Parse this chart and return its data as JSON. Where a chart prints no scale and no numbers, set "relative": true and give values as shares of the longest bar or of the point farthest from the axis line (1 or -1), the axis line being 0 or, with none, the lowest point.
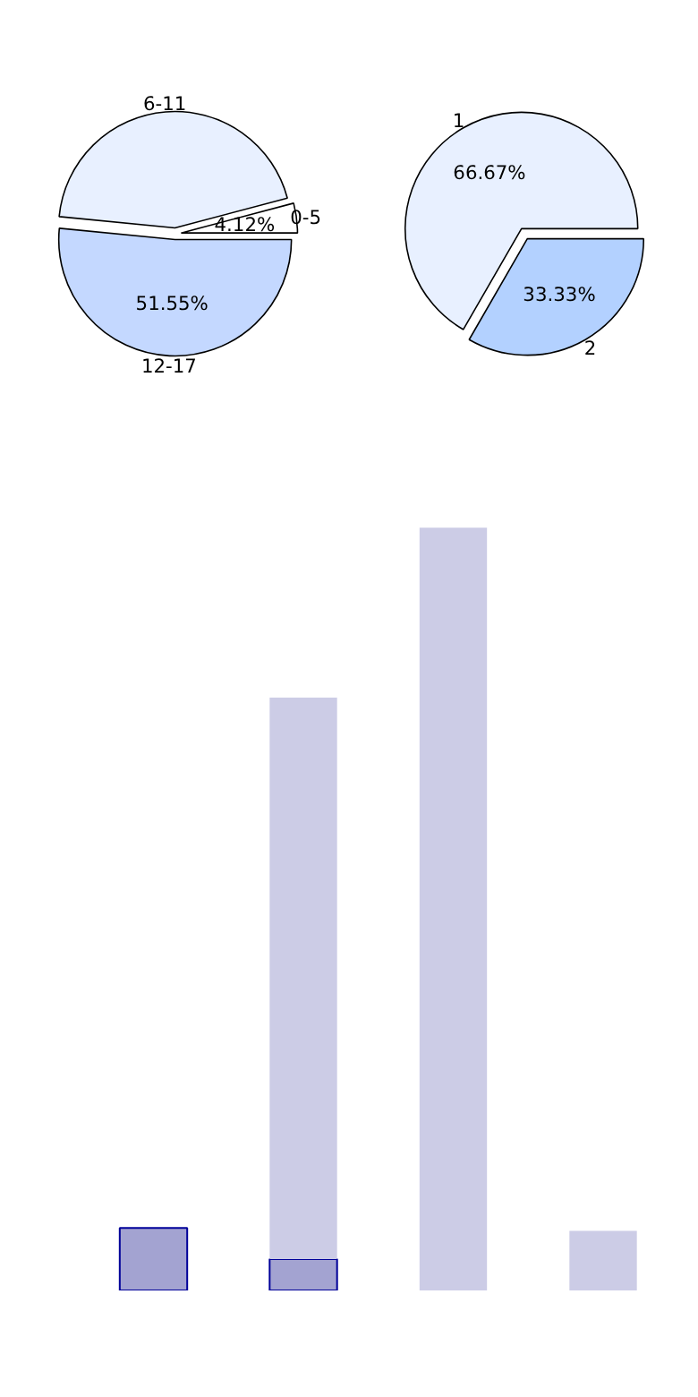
{
  "chart_data": [
    {
      "type": "pie",
      "categories": [
        "0-5",
        "6-11",
        "12-17"
      ],
      "values": [
        4.12,
        44.33,
        51.55
      ],
      "colors": [
        "#ffffff",
        "#e8f0ff",
        "#c4d8ff"
      ],
      "value_labels": [
        "4.12%",
        null,
        "51.55%"
      ]
    },
    {
      "type": "pie",
      "categories": [
        "1",
        "2"
      ],
      "values": [
        66.67,
        33.33
      ],
      "colors": [
        "#e8f0ff",
        "#b3d1ff"
      ],
      "value_labels": [
        "66.67%",
        "33.33%"
      ]
    },
    {
      "type": "bar",
      "categories": [
        null,
        null,
        null,
        null
      ],
      "relative": true,
      "series": [
        {
          "color": "#a3a3d1",
          "values": [
            0.082,
            0.041,
            null,
            null
          ]
        },
        {
          "color": "#ccccE6",
          "values": [
            null,
            0.736,
            1,
            0.078
          ]
        }
      ],
      "stacked": true
    }
  ]
}
